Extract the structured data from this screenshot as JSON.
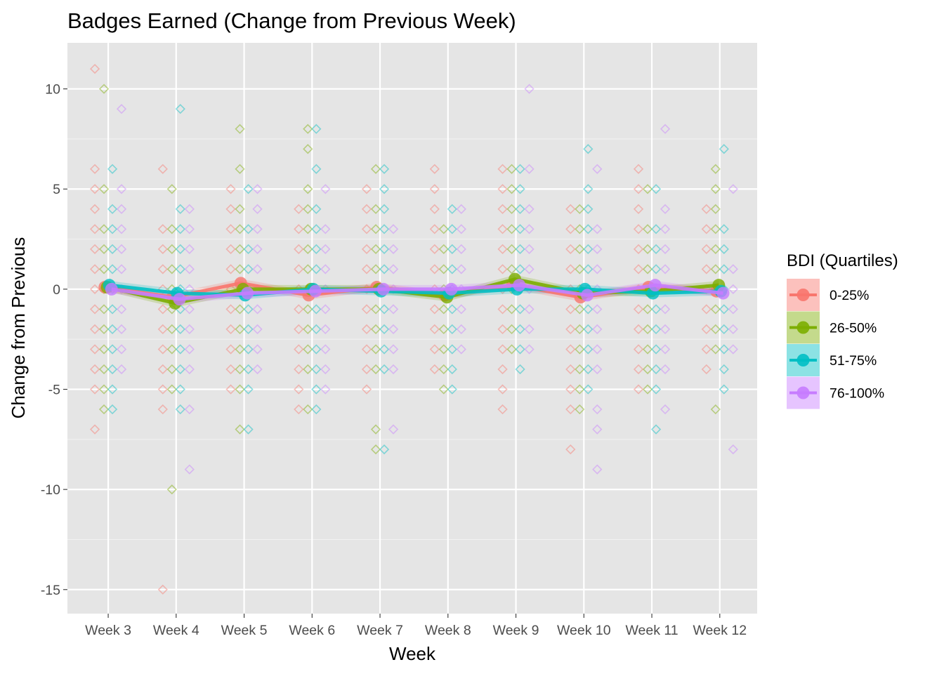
{
  "chart_data": {
    "type": "scatter",
    "title": "Badges Earned (Change from Previous Week)",
    "xlabel": "Week",
    "ylabel": "Change from Previous",
    "categories": [
      "Week 3",
      "Week 4",
      "Week 5",
      "Week 6",
      "Week 7",
      "Week 8",
      "Week 9",
      "Week 10",
      "Week 11",
      "Week 12"
    ],
    "ylim": [
      -16.2,
      12.3
    ],
    "yticks": [
      -15,
      -10,
      -5,
      0,
      5,
      10
    ],
    "grid": true,
    "legend": {
      "title": "BDI (Quartiles)",
      "position": "right"
    },
    "series": [
      {
        "name": "0-25%",
        "color": "#F8766D",
        "means": [
          0.1,
          -0.4,
          0.3,
          -0.3,
          0.1,
          -0.3,
          0.2,
          -0.4,
          0.1,
          -0.1
        ],
        "points": [
          [
            11,
            6,
            5,
            4,
            3,
            2,
            1,
            0,
            -1,
            -2,
            -3,
            -4,
            -5,
            -7
          ],
          [
            6,
            3,
            2,
            1,
            0,
            -1,
            -2,
            -3,
            -4,
            -5,
            -6,
            -15
          ],
          [
            5,
            4,
            3,
            2,
            1,
            0,
            -1,
            -2,
            -3,
            -4,
            -5
          ],
          [
            4,
            3,
            2,
            1,
            0,
            -1,
            -2,
            -3,
            -4,
            -5,
            -6
          ],
          [
            5,
            4,
            3,
            2,
            1,
            0,
            -1,
            -2,
            -3,
            -4,
            -5
          ],
          [
            6,
            5,
            4,
            3,
            2,
            1,
            0,
            -1,
            -2,
            -3,
            -4
          ],
          [
            6,
            5,
            4,
            3,
            2,
            1,
            0,
            -1,
            -2,
            -3,
            -4,
            -5,
            -6
          ],
          [
            4,
            3,
            2,
            1,
            0,
            -1,
            -2,
            -3,
            -4,
            -5,
            -6,
            -8
          ],
          [
            6,
            5,
            4,
            3,
            2,
            1,
            0,
            -1,
            -2,
            -3,
            -4,
            -5
          ],
          [
            4,
            3,
            2,
            1,
            0,
            -1,
            -2,
            -3,
            -4
          ]
        ]
      },
      {
        "name": "26-50%",
        "color": "#7CAE00",
        "means": [
          0.1,
          -0.7,
          0.0,
          0.0,
          0.0,
          -0.4,
          0.5,
          -0.2,
          -0.1,
          0.2
        ],
        "points": [
          [
            10,
            5,
            3,
            2,
            1,
            0,
            -1,
            -2,
            -3,
            -4,
            -5,
            -6
          ],
          [
            5,
            3,
            2,
            1,
            0,
            -1,
            -2,
            -3,
            -4,
            -5,
            -10
          ],
          [
            8,
            6,
            4,
            3,
            2,
            1,
            0,
            -1,
            -2,
            -3,
            -4,
            -5,
            -7
          ],
          [
            8,
            7,
            5,
            4,
            3,
            2,
            1,
            0,
            -1,
            -2,
            -3,
            -4,
            -6
          ],
          [
            6,
            4,
            3,
            2,
            1,
            0,
            -1,
            -2,
            -3,
            -4,
            -7,
            -8
          ],
          [
            3,
            2,
            1,
            0,
            -1,
            -2,
            -3,
            -4,
            -5
          ],
          [
            6,
            5,
            4,
            3,
            2,
            1,
            0,
            -1,
            -2,
            -3
          ],
          [
            4,
            3,
            2,
            1,
            0,
            -1,
            -2,
            -3,
            -4,
            -5,
            -6
          ],
          [
            5,
            3,
            2,
            1,
            0,
            -1,
            -2,
            -3,
            -4,
            -5
          ],
          [
            6,
            5,
            4,
            3,
            2,
            1,
            0,
            -1,
            -2,
            -3,
            -6
          ]
        ]
      },
      {
        "name": "51-75%",
        "color": "#00BFC4",
        "means": [
          0.2,
          -0.2,
          -0.3,
          0.0,
          -0.1,
          -0.2,
          0.0,
          0.0,
          -0.2,
          -0.1
        ],
        "points": [
          [
            6,
            4,
            3,
            2,
            1,
            0,
            -1,
            -2,
            -3,
            -4,
            -5,
            -6
          ],
          [
            9,
            4,
            3,
            2,
            1,
            0,
            -1,
            -2,
            -3,
            -4,
            -5,
            -6
          ],
          [
            5,
            3,
            2,
            1,
            0,
            -1,
            -2,
            -3,
            -4,
            -5,
            -7
          ],
          [
            8,
            6,
            4,
            3,
            2,
            1,
            0,
            -1,
            -2,
            -3,
            -4,
            -5,
            -6
          ],
          [
            6,
            5,
            4,
            3,
            2,
            1,
            0,
            -1,
            -2,
            -3,
            -4,
            -8
          ],
          [
            4,
            3,
            2,
            1,
            0,
            -1,
            -2,
            -3,
            -4,
            -5
          ],
          [
            6,
            5,
            4,
            3,
            2,
            1,
            0,
            -1,
            -2,
            -3,
            -4
          ],
          [
            7,
            5,
            4,
            3,
            2,
            1,
            0,
            -1,
            -2,
            -3,
            -4,
            -5
          ],
          [
            5,
            3,
            2,
            1,
            0,
            -1,
            -2,
            -3,
            -4,
            -5,
            -7
          ],
          [
            7,
            3,
            2,
            1,
            0,
            -1,
            -2,
            -3,
            -4,
            -5
          ]
        ]
      },
      {
        "name": "76-100%",
        "color": "#C77CFF",
        "means": [
          0.0,
          -0.5,
          -0.2,
          -0.1,
          0.0,
          0.0,
          0.2,
          -0.3,
          0.2,
          -0.2
        ],
        "points": [
          [
            9,
            5,
            4,
            3,
            2,
            1,
            0,
            -1,
            -2,
            -3,
            -4
          ],
          [
            4,
            3,
            2,
            1,
            0,
            -1,
            -2,
            -3,
            -4,
            -6,
            -9
          ],
          [
            5,
            4,
            3,
            2,
            1,
            0,
            -1,
            -2,
            -3,
            -4
          ],
          [
            5,
            3,
            2,
            1,
            0,
            -1,
            -2,
            -3,
            -4,
            -5
          ],
          [
            3,
            2,
            1,
            0,
            -1,
            -2,
            -3,
            -4,
            -7
          ],
          [
            4,
            3,
            2,
            1,
            0,
            -1,
            -2,
            -3
          ],
          [
            10,
            6,
            4,
            3,
            2,
            1,
            0,
            -1,
            -2,
            -3
          ],
          [
            6,
            3,
            2,
            1,
            0,
            -1,
            -2,
            -3,
            -4,
            -6,
            -7,
            -9
          ],
          [
            8,
            4,
            3,
            2,
            1,
            0,
            -1,
            -2,
            -3,
            -4,
            -6
          ],
          [
            5,
            1,
            0,
            -1,
            -2,
            -3,
            -8
          ]
        ]
      }
    ]
  }
}
